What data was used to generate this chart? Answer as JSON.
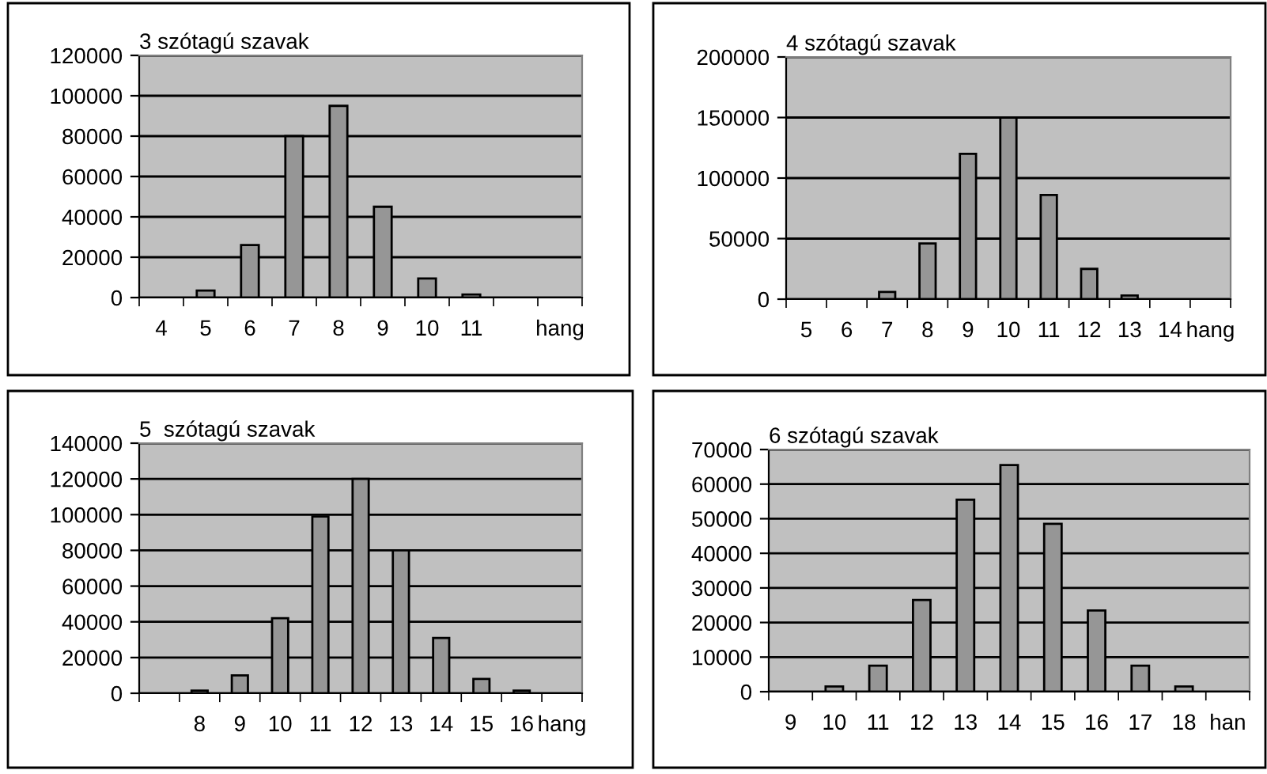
{
  "chart_data": [
    {
      "type": "bar",
      "title": "3 szótagú szavak",
      "categories": [
        "4",
        "5",
        "6",
        "7",
        "8",
        "9",
        "10",
        "11",
        null,
        "hang"
      ],
      "values": [
        null,
        3500,
        26000,
        80000,
        95000,
        45000,
        9500,
        1500,
        null,
        null
      ],
      "color": "#969696",
      "ylim": [
        0,
        120000
      ],
      "yticks": [
        0,
        20000,
        40000,
        60000,
        80000,
        100000,
        120000
      ],
      "grid": "y"
    },
    {
      "type": "bar",
      "title": "4 szótagú szavak",
      "categories": [
        "5",
        "6",
        "7",
        "8",
        "9",
        "10",
        "11",
        "12",
        "13",
        "14",
        "hang"
      ],
      "values": [
        null,
        null,
        6000,
        46000,
        120000,
        150000,
        86000,
        25000,
        3000,
        null,
        null
      ],
      "color": "#969696",
      "ylim": [
        0,
        200000
      ],
      "yticks": [
        0,
        50000,
        100000,
        150000,
        200000
      ],
      "grid": "y"
    },
    {
      "type": "bar",
      "title": "5  szótagú szavak",
      "categories": [
        null,
        "8",
        "9",
        "10",
        "11",
        "12",
        "13",
        "14",
        "15",
        "16",
        "hang"
      ],
      "values": [
        null,
        1500,
        10000,
        42000,
        99000,
        120000,
        80000,
        31000,
        8000,
        1500,
        null
      ],
      "color": "#969696",
      "ylim": [
        0,
        140000
      ],
      "yticks": [
        0,
        20000,
        40000,
        60000,
        80000,
        100000,
        120000,
        140000
      ],
      "grid": "y"
    },
    {
      "type": "bar",
      "title": "6 szótagú szavak",
      "categories": [
        "9",
        "10",
        "11",
        "12",
        "13",
        "14",
        "15",
        "16",
        "17",
        "18",
        "han"
      ],
      "values": [
        null,
        1500,
        7500,
        26500,
        55500,
        65500,
        48500,
        23500,
        7500,
        1500,
        null
      ],
      "color": "#969696",
      "ylim": [
        0,
        70000
      ],
      "yticks": [
        0,
        10000,
        20000,
        30000,
        40000,
        50000,
        60000,
        70000
      ],
      "grid": "y"
    }
  ]
}
